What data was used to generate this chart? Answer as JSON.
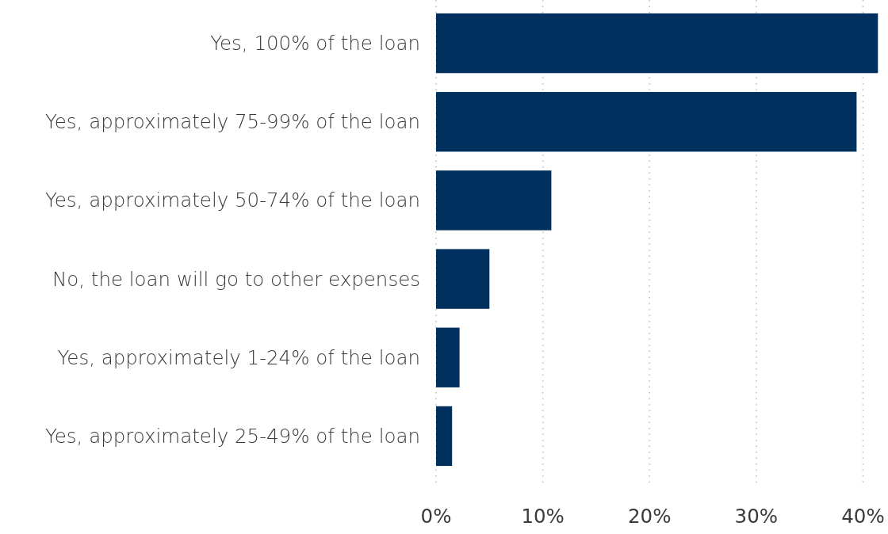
{
  "chart_data": {
    "type": "bar",
    "orientation": "horizontal",
    "categories": [
      "Yes, 100% of the loan",
      "Yes, approximately 75-99% of the loan",
      "Yes, approximately 50-74% of the loan",
      "No, the loan will go to other expenses",
      "Yes, approximately 1-24% of the loan",
      "Yes, approximately 25-49% of the loan"
    ],
    "values": [
      41.4,
      39.4,
      10.8,
      5.0,
      2.2,
      1.5
    ],
    "color": "#00305e",
    "xlim": [
      0,
      41.6
    ],
    "xticks": [
      {
        "value": 0,
        "label": "0%"
      },
      {
        "value": 10,
        "label": "10%"
      },
      {
        "value": 20,
        "label": "20%"
      },
      {
        "value": 30,
        "label": "30%"
      },
      {
        "value": 40,
        "label": "40%"
      }
    ],
    "grid": "x"
  }
}
